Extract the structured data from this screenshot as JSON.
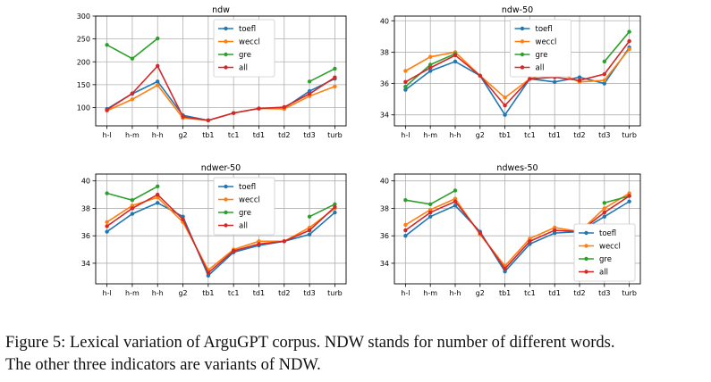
{
  "colors": {
    "toefl": "#1f77b4",
    "weccl": "#ff7f0e",
    "gre": "#2ca02c",
    "all": "#d62728"
  },
  "caption": {
    "line1": "Figure 5: Lexical variation of ArguGPT corpus. NDW stands for number of different words.",
    "line2": "The other three indicators are variants of NDW."
  },
  "chart_data": [
    {
      "type": "line",
      "title": "ndw",
      "categories": [
        "h-l",
        "h-m",
        "h-h",
        "g2",
        "tb1",
        "tc1",
        "td1",
        "td2",
        "td3",
        "turb"
      ],
      "ylim": [
        60,
        300
      ],
      "yticks": [
        100,
        150,
        200,
        250,
        300
      ],
      "grid": true,
      "legend": "top-center",
      "series": [
        {
          "name": "toefl",
          "values": [
            97,
            130,
            157,
            83,
            72,
            88,
            98,
            99,
            136,
            163
          ]
        },
        {
          "name": "weccl",
          "values": [
            93,
            118,
            149,
            77,
            72,
            88,
            98,
            97,
            125,
            146
          ]
        },
        {
          "name": "gre",
          "values": [
            237,
            207,
            251,
            null,
            null,
            null,
            null,
            null,
            157,
            185
          ]
        },
        {
          "name": "all",
          "values": [
            95,
            131,
            191,
            80,
            72,
            88,
            98,
            101,
            130,
            166
          ]
        }
      ]
    },
    {
      "type": "line",
      "title": "ndw-50",
      "categories": [
        "h-l",
        "h-m",
        "h-h",
        "g2",
        "tb1",
        "tc1",
        "td1",
        "td2",
        "td3",
        "turb"
      ],
      "ylim": [
        33.3,
        40.3
      ],
      "yticks": [
        34,
        36,
        38,
        40
      ],
      "grid": true,
      "legend": "top-center",
      "series": [
        {
          "name": "toefl",
          "values": [
            35.6,
            36.8,
            37.4,
            36.5,
            34.0,
            36.3,
            36.1,
            36.4,
            36.0,
            38.3
          ]
        },
        {
          "name": "weccl",
          "values": [
            36.8,
            37.7,
            38.0,
            36.5,
            35.1,
            36.3,
            36.8,
            36.1,
            36.2,
            38.2
          ]
        },
        {
          "name": "gre",
          "values": [
            35.8,
            37.2,
            37.9,
            null,
            null,
            null,
            null,
            null,
            37.4,
            39.3
          ]
        },
        {
          "name": "all",
          "values": [
            36.1,
            37.0,
            37.8,
            36.5,
            34.6,
            36.3,
            36.4,
            36.2,
            36.6,
            38.7
          ]
        }
      ]
    },
    {
      "type": "line",
      "title": "ndwer-50",
      "categories": [
        "h-l",
        "h-m",
        "h-h",
        "g2",
        "tb1",
        "tc1",
        "td1",
        "td2",
        "td3",
        "turb"
      ],
      "ylim": [
        32.5,
        40.5
      ],
      "yticks": [
        34,
        36,
        38,
        40
      ],
      "grid": true,
      "legend": "top-center",
      "series": [
        {
          "name": "toefl",
          "values": [
            36.3,
            37.6,
            38.4,
            37.4,
            33.1,
            34.8,
            35.3,
            35.6,
            36.1,
            37.7
          ]
        },
        {
          "name": "weccl",
          "values": [
            37.0,
            38.2,
            38.8,
            37.0,
            33.5,
            35.0,
            35.6,
            35.6,
            36.6,
            38.0
          ]
        },
        {
          "name": "gre",
          "values": [
            39.1,
            38.6,
            39.6,
            null,
            null,
            null,
            null,
            null,
            37.4,
            38.3
          ]
        },
        {
          "name": "all",
          "values": [
            36.7,
            38.0,
            39.0,
            37.2,
            33.3,
            34.9,
            35.4,
            35.6,
            36.4,
            38.1
          ]
        }
      ]
    },
    {
      "type": "line",
      "title": "ndwes-50",
      "categories": [
        "h-l",
        "h-m",
        "h-h",
        "g2",
        "tb1",
        "tc1",
        "td1",
        "td2",
        "td3",
        "turb"
      ],
      "ylim": [
        32.5,
        40.5
      ],
      "yticks": [
        34,
        36,
        38,
        40
      ],
      "grid": true,
      "legend": "right",
      "series": [
        {
          "name": "toefl",
          "values": [
            36.0,
            37.4,
            38.2,
            36.3,
            33.4,
            35.4,
            36.2,
            36.3,
            37.4,
            38.5
          ]
        },
        {
          "name": "weccl",
          "values": [
            36.8,
            37.9,
            38.7,
            36.1,
            33.8,
            35.8,
            36.6,
            36.3,
            38.0,
            39.1
          ]
        },
        {
          "name": "gre",
          "values": [
            38.6,
            38.3,
            39.3,
            null,
            null,
            null,
            null,
            null,
            38.4,
            38.9
          ]
        },
        {
          "name": "all",
          "values": [
            36.4,
            37.7,
            38.5,
            36.2,
            33.6,
            35.6,
            36.4,
            36.3,
            37.7,
            38.9
          ]
        }
      ]
    }
  ]
}
